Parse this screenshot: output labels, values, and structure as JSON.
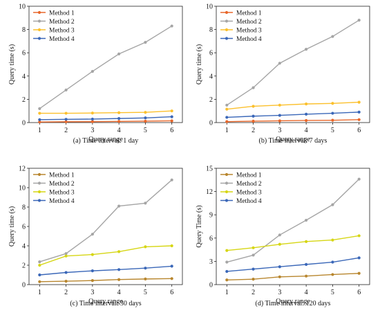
{
  "figure": {
    "method_colors": {
      "row1": [
        "#e8672a",
        "#a5a5a5",
        "#fbc02d",
        "#3a67b8"
      ],
      "row2": [
        "#b8862e",
        "#a5a5a5",
        "#d6d614",
        "#3a67b8"
      ]
    }
  },
  "chart_data": [
    {
      "type": "line",
      "caption": "(a) Time interval: 1 day",
      "xlabel": "Query range",
      "ylabel": "Query time (s)",
      "x": [
        1,
        2,
        3,
        4,
        5,
        6
      ],
      "xlim": [
        0.6,
        6.4
      ],
      "ylim": [
        0,
        10
      ],
      "yticks": [
        0,
        2,
        4,
        6,
        8,
        10
      ],
      "grid": false,
      "legend": "top-left",
      "series": [
        {
          "name": "Method 1",
          "color": "#e8672a",
          "values": [
            0.05,
            0.07,
            0.08,
            0.1,
            0.12,
            0.15
          ]
        },
        {
          "name": "Method 2",
          "color": "#a5a5a5",
          "values": [
            1.2,
            2.8,
            4.4,
            5.9,
            6.9,
            8.3
          ]
        },
        {
          "name": "Method 3",
          "color": "#fbc02d",
          "values": [
            0.8,
            0.8,
            0.82,
            0.85,
            0.88,
            1.0
          ]
        },
        {
          "name": "Method 4",
          "color": "#3a67b8",
          "values": [
            0.25,
            0.28,
            0.3,
            0.35,
            0.4,
            0.5
          ]
        }
      ]
    },
    {
      "type": "line",
      "caption": "(b) Time interval: 7 days",
      "xlabel": "Query range",
      "ylabel": "Query time (s)",
      "x": [
        1,
        2,
        3,
        4,
        5,
        6
      ],
      "xlim": [
        0.6,
        6.4
      ],
      "ylim": [
        0,
        10
      ],
      "yticks": [
        0,
        2,
        4,
        6,
        8,
        10
      ],
      "grid": false,
      "legend": "top-left",
      "series": [
        {
          "name": "Method 1",
          "color": "#e8672a",
          "values": [
            0.08,
            0.12,
            0.15,
            0.18,
            0.2,
            0.25
          ]
        },
        {
          "name": "Method 2",
          "color": "#a5a5a5",
          "values": [
            1.5,
            3.0,
            5.1,
            6.3,
            7.4,
            8.8
          ]
        },
        {
          "name": "Method 3",
          "color": "#fbc02d",
          "values": [
            1.15,
            1.4,
            1.5,
            1.6,
            1.65,
            1.75
          ]
        },
        {
          "name": "Method 4",
          "color": "#3a67b8",
          "values": [
            0.45,
            0.55,
            0.62,
            0.72,
            0.8,
            0.9
          ]
        }
      ]
    },
    {
      "type": "line",
      "caption": "(c) Time interval: 30 days",
      "xlabel": "Query range",
      "ylabel": "Query time (s)",
      "x": [
        1,
        2,
        3,
        4,
        5,
        6
      ],
      "xlim": [
        0.6,
        6.4
      ],
      "ylim": [
        0,
        12
      ],
      "yticks": [
        0,
        2,
        4,
        6,
        8,
        10,
        12
      ],
      "grid": false,
      "legend": "top-left",
      "series": [
        {
          "name": "Method 1",
          "color": "#b8862e",
          "values": [
            0.3,
            0.35,
            0.42,
            0.52,
            0.58,
            0.62
          ]
        },
        {
          "name": "Method 2",
          "color": "#a5a5a5",
          "values": [
            2.35,
            3.2,
            5.2,
            8.1,
            8.4,
            10.8
          ]
        },
        {
          "name": "Method 3",
          "color": "#d6d614",
          "values": [
            2.0,
            2.95,
            3.1,
            3.4,
            3.9,
            4.0
          ]
        },
        {
          "name": "Method 4",
          "color": "#3a67b8",
          "values": [
            1.0,
            1.25,
            1.42,
            1.55,
            1.7,
            1.9
          ]
        }
      ]
    },
    {
      "type": "line",
      "caption": "(d) Time interval: 120 days",
      "xlabel": "Query range",
      "ylabel": "Query Time (s)",
      "x": [
        1,
        2,
        3,
        4,
        5,
        6
      ],
      "xlim": [
        0.6,
        6.4
      ],
      "ylim": [
        0,
        15
      ],
      "yticks": [
        0,
        3,
        6,
        9,
        12,
        15
      ],
      "grid": false,
      "legend": "top-left",
      "series": [
        {
          "name": "Method 1",
          "color": "#b8862e",
          "values": [
            0.6,
            0.7,
            1.0,
            1.1,
            1.3,
            1.45
          ]
        },
        {
          "name": "Method 2",
          "color": "#a5a5a5",
          "values": [
            2.9,
            3.8,
            6.4,
            8.3,
            10.3,
            13.6
          ]
        },
        {
          "name": "Method 3",
          "color": "#d6d614",
          "values": [
            4.4,
            4.75,
            5.2,
            5.55,
            5.75,
            6.3
          ]
        },
        {
          "name": "Method 4",
          "color": "#3a67b8",
          "values": [
            1.7,
            2.0,
            2.3,
            2.6,
            2.9,
            3.45
          ]
        }
      ]
    }
  ]
}
